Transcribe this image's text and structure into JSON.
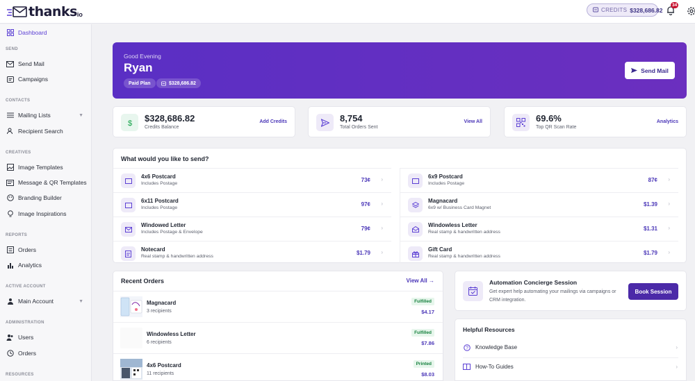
{
  "header": {
    "logo_text": "thanks",
    "logo_suffix": "io",
    "credits_label": "CREDITS",
    "credits_amount": "$328,686.82",
    "notification_count": "34"
  },
  "sidebar": {
    "dashboard": "Dashboard",
    "sections": {
      "send": "SEND",
      "contacts": "CONTACTS",
      "creatives": "CREATIVES",
      "reports": "REPORTS",
      "active_account": "ACTIVE ACCOUNT",
      "administration": "ADMINISTRATION",
      "resources": "RESOURCES"
    },
    "items": {
      "send_mail": "Send Mail",
      "campaigns": "Campaigns",
      "mailing_lists": "Mailing Lists",
      "recipient_search": "Recipient Search",
      "image_templates": "Image Templates",
      "message_qr_templates": "Message & QR Templates",
      "branding_builder": "Branding Builder",
      "image_inspirations": "Image Inspirations",
      "orders": "Orders",
      "analytics": "Analytics",
      "main_account": "Main Account",
      "users": "Users",
      "admin_orders": "Orders"
    }
  },
  "hero": {
    "greeting": "Good Evening",
    "name": "Ryan",
    "plan": "Paid Plan",
    "balance": "$328,686.82",
    "send_button": "Send Mail"
  },
  "stats": [
    {
      "value": "$328,686.82",
      "label": "Credits Balance",
      "action": "Add Credits",
      "icon": "dollar-icon",
      "color": "#16a34a",
      "bg": "#e8f6ee"
    },
    {
      "value": "8,754",
      "label": "Total Orders Sent",
      "action": "View All",
      "icon": "send-icon",
      "color": "#5b3fd4",
      "bg": "#eeeaf8"
    },
    {
      "value": "69.6%",
      "label": "Top QR Scan Rate",
      "action": "Analytics",
      "icon": "qr-code-icon",
      "color": "#5b3fd4",
      "bg": "#eeeaf8"
    }
  ],
  "send_panel": {
    "title": "What would you like to send?",
    "products": [
      {
        "name": "4x6 Postcard",
        "desc": "Includes Postage",
        "price": "73¢"
      },
      {
        "name": "6x9 Postcard",
        "desc": "Includes Postage",
        "price": "87¢"
      },
      {
        "name": "6x11 Postcard",
        "desc": "Includes Postage",
        "price": "97¢"
      },
      {
        "name": "Magnacard",
        "desc": "6x9 w/ Business Card Magnet",
        "price": "$1.39"
      },
      {
        "name": "Windowed Letter",
        "desc": "Includes Postage & Envelope",
        "price": "79¢"
      },
      {
        "name": "Windowless Letter",
        "desc": "Real stamp & handwritten address",
        "price": "$1.31"
      },
      {
        "name": "Notecard",
        "desc": "Real stamp & handwritten address",
        "price": "$1.79"
      },
      {
        "name": "Gift Card",
        "desc": "Real stamp & handwritten address",
        "price": "$1.79"
      }
    ]
  },
  "recent_orders": {
    "title": "Recent Orders",
    "view_all": "View All →",
    "orders": [
      {
        "name": "Magnacard",
        "recipients": "3 recipients",
        "status": "Fulfilled",
        "price": "$4.17"
      },
      {
        "name": "Windowless Letter",
        "recipients": "6 recipients",
        "status": "Fulfilled",
        "price": "$7.86"
      },
      {
        "name": "4x6 Postcard",
        "recipients": "11 recipients",
        "status": "Printed",
        "price": "$8.03"
      }
    ]
  },
  "concierge": {
    "title": "Automation Concierge Session",
    "desc": "Get expert help automating your mailings via campaigns or CRM integration.",
    "button": "Book Session"
  },
  "resources": {
    "title": "Helpful Resources",
    "items": [
      {
        "label": "Knowledge Base"
      },
      {
        "label": "How-To Guides"
      }
    ]
  }
}
